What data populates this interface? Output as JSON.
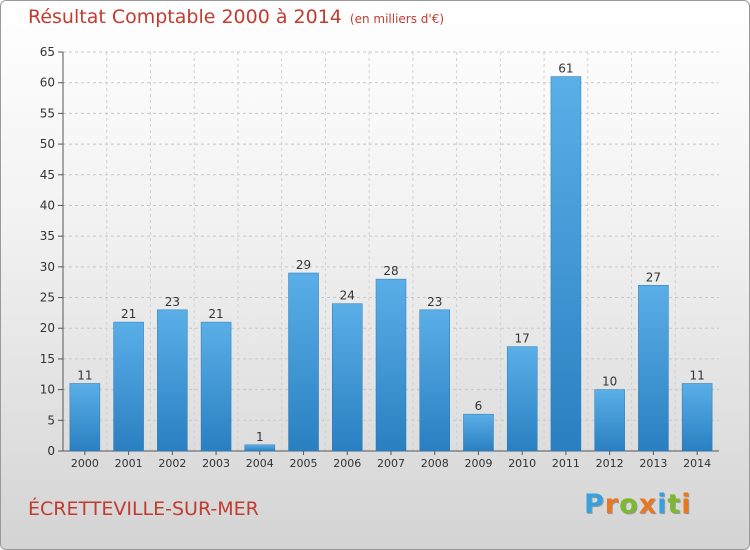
{
  "header": {
    "title": "Résultat Comptable 2000 à 2014",
    "subtitle": "(en milliers d'€)"
  },
  "footer": {
    "commune": "ÉCRETTEVILLE-SUR-MER",
    "brand": "Proxiti"
  },
  "colors": {
    "bar_light": "#5aafe8",
    "bar_dark": "#2a7fc1",
    "title": "#c23b2f",
    "brand_letters": [
      "#3aa0dc",
      "#e8771f",
      "#7cb830",
      "#e8771f",
      "#3aa0dc",
      "#7cb830",
      "#e8771f"
    ]
  },
  "chart_data": {
    "type": "bar",
    "categories": [
      "2000",
      "2001",
      "2002",
      "2003",
      "2004",
      "2005",
      "2006",
      "2007",
      "2008",
      "2009",
      "2010",
      "2011",
      "2012",
      "2013",
      "2014"
    ],
    "values": [
      11,
      21,
      23,
      21,
      1,
      29,
      24,
      28,
      23,
      6,
      17,
      61,
      10,
      27,
      11
    ],
    "ylim": [
      0,
      65
    ],
    "yticks": [
      0,
      5,
      10,
      15,
      20,
      25,
      30,
      35,
      40,
      45,
      50,
      55,
      60,
      65
    ],
    "grid": true,
    "legend": "none"
  }
}
